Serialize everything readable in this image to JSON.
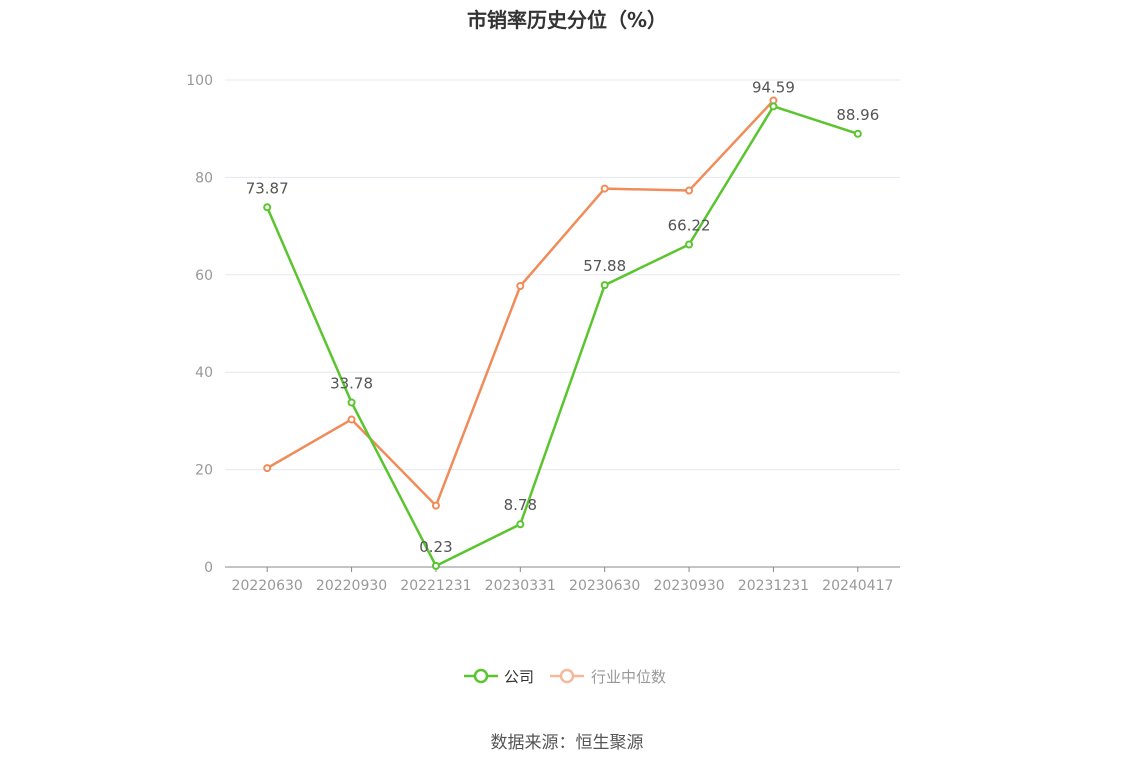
{
  "title": "市销率历史分位（%）",
  "source": "数据来源：恒生聚源",
  "colors": {
    "company": "#5ac52f",
    "industry": "#f08c5a",
    "industry_legend": "#f6b89c",
    "grid": "#e6e8f0",
    "axis": "#999999",
    "label": "#555555"
  },
  "chart_data": {
    "type": "line",
    "title": "市销率历史分位（%）",
    "categories": [
      "20220630",
      "20220930",
      "20221231",
      "20230331",
      "20230630",
      "20230930",
      "20231231",
      "20240417"
    ],
    "series": [
      {
        "name": "公司",
        "values": [
          73.87,
          33.78,
          0.23,
          8.78,
          57.88,
          66.22,
          94.59,
          88.96
        ],
        "labels": [
          "73.87",
          "33.78",
          "0.23",
          "8.78",
          "57.88",
          "66.22",
          "94.59",
          "88.96"
        ]
      },
      {
        "name": "行业中位数",
        "values": [
          20.3,
          30.3,
          12.6,
          57.7,
          77.7,
          77.3,
          95.8,
          null
        ]
      }
    ],
    "ylim": [
      0,
      100
    ],
    "yticks": [
      0,
      20,
      40,
      60,
      80,
      100
    ],
    "grid": true,
    "legend": "bottom"
  }
}
